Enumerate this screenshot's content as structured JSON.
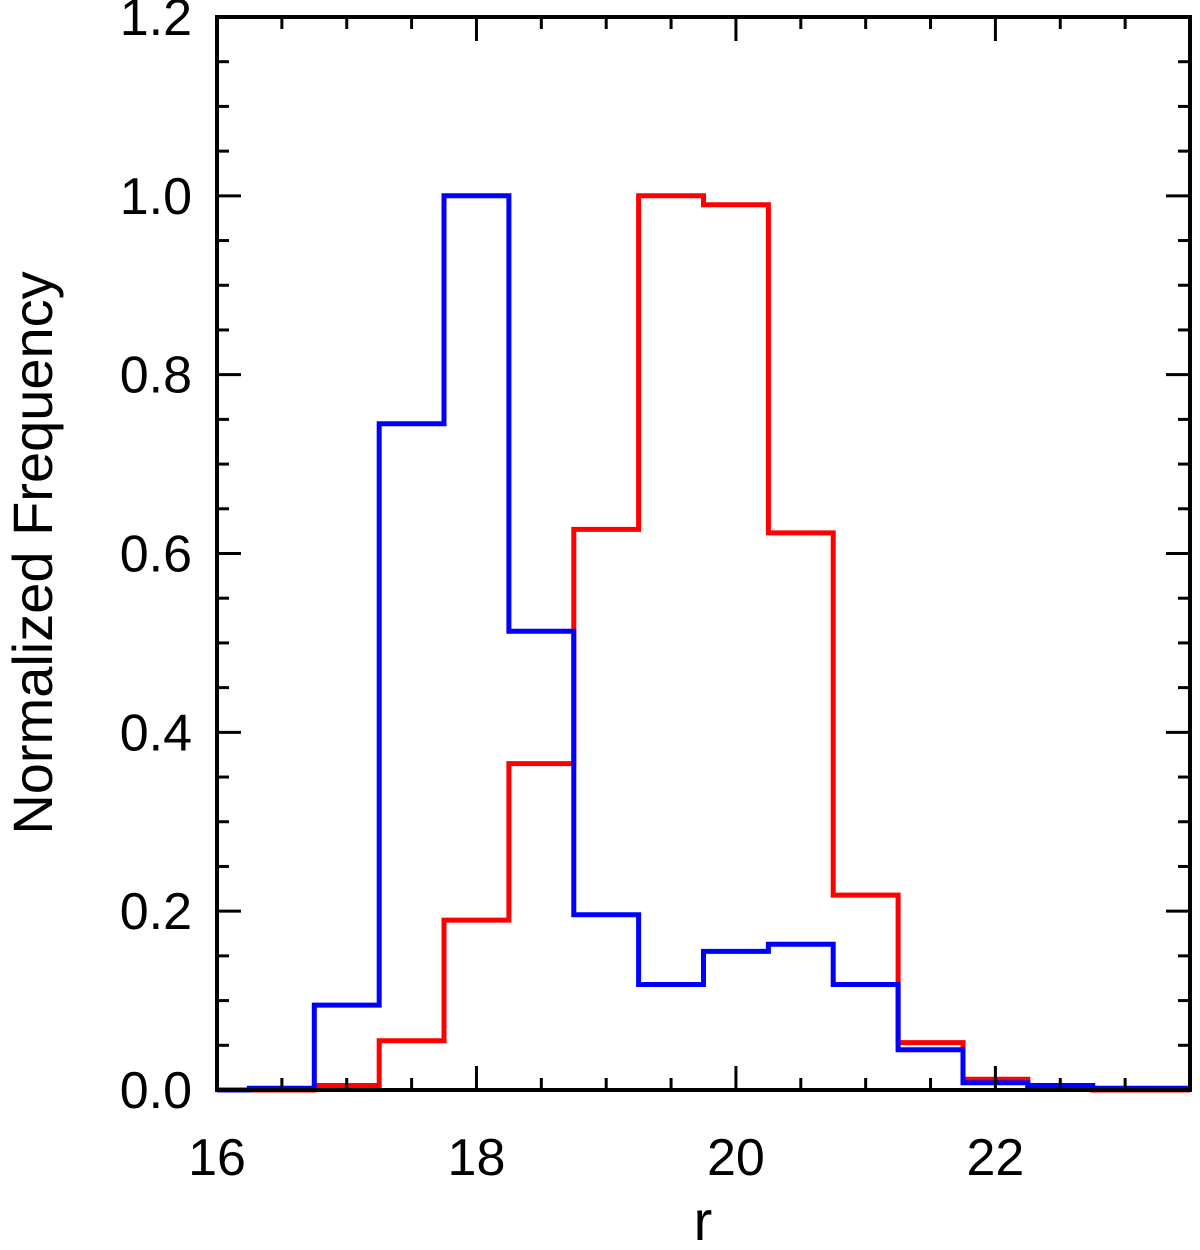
{
  "chart_data": {
    "type": "line",
    "step": "histogram",
    "xlabel": "r",
    "ylabel": "Normalized Frequency",
    "xlim": [
      16,
      23.5
    ],
    "ylim": [
      0,
      1.2
    ],
    "x_ticks": [
      16,
      18,
      20,
      22
    ],
    "x_tick_labels": [
      "16",
      "18",
      "20",
      "22"
    ],
    "y_ticks": [
      0.0,
      0.2,
      0.4,
      0.6,
      0.8,
      1.0,
      1.2
    ],
    "y_tick_labels": [
      "0.0",
      "0.2",
      "0.4",
      "0.6",
      "0.8",
      "1.0",
      "1.2"
    ],
    "bin_edges": [
      16.0,
      16.25,
      16.75,
      17.25,
      17.75,
      18.25,
      18.75,
      19.25,
      19.75,
      20.25,
      20.75,
      21.25,
      21.75,
      22.25,
      22.75,
      23.5
    ],
    "series": [
      {
        "color": "#ff0000",
        "values": [
          0.0,
          0.0,
          0.005,
          0.055,
          0.19,
          0.365,
          0.627,
          1.0,
          0.99,
          0.623,
          0.218,
          0.053,
          0.012,
          0.003,
          0.0
        ]
      },
      {
        "color": "#0000ff",
        "values": [
          0.0,
          0.002,
          0.095,
          0.745,
          1.0,
          0.513,
          0.196,
          0.118,
          0.155,
          0.163,
          0.118,
          0.045,
          0.008,
          0.005,
          0.002
        ]
      }
    ],
    "grid": false,
    "legend": "none"
  }
}
